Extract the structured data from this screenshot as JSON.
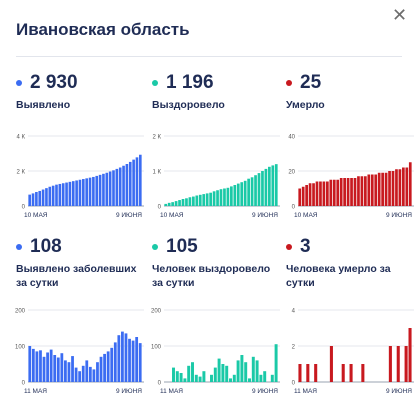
{
  "header": {
    "title": "Ивановская область",
    "close_glyph": "✕"
  },
  "panels": [
    {
      "id": "detected",
      "value": "2 930",
      "label": "Выявлено",
      "color": "#3b6cf2",
      "chart_data": {
        "type": "bar",
        "yticks": [
          "4 К",
          "2 К",
          "0"
        ],
        "ylim": [
          0,
          4000
        ],
        "xlabel_start": "10 МАЯ",
        "xlabel_end": "9 ИЮНЯ",
        "values": [
          650,
          720,
          800,
          860,
          940,
          1020,
          1100,
          1160,
          1220,
          1260,
          1300,
          1340,
          1380,
          1420,
          1460,
          1500,
          1540,
          1580,
          1620,
          1660,
          1720,
          1780,
          1840,
          1900,
          1970,
          2040,
          2120,
          2200,
          2300,
          2400,
          2520,
          2650,
          2780,
          2930
        ]
      }
    },
    {
      "id": "recovered",
      "value": "1 196",
      "label": "Выздоровело",
      "color": "#1ac9a7",
      "chart_data": {
        "type": "bar",
        "yticks": [
          "2 К",
          "1 К",
          "0"
        ],
        "ylim": [
          0,
          2000
        ],
        "xlabel_start": "10 МАЯ",
        "xlabel_end": "9 ИЮНЯ",
        "values": [
          60,
          90,
          110,
          140,
          170,
          200,
          220,
          250,
          270,
          300,
          320,
          340,
          360,
          380,
          420,
          450,
          480,
          500,
          520,
          560,
          600,
          640,
          680,
          720,
          780,
          820,
          880,
          940,
          1000,
          1060,
          1120,
          1160,
          1196
        ]
      }
    },
    {
      "id": "deaths",
      "value": "25",
      "label": "Умерло",
      "color": "#c8191f",
      "chart_data": {
        "type": "bar",
        "yticks": [
          "40",
          "20",
          "0"
        ],
        "ylim": [
          0,
          40
        ],
        "xlabel_start": "10 МАЯ",
        "xlabel_end": "9 ИЮНЯ",
        "values": [
          10,
          11,
          12,
          13,
          13,
          14,
          14,
          14,
          14,
          15,
          15,
          15,
          16,
          16,
          16,
          16,
          16,
          17,
          17,
          17,
          18,
          18,
          18,
          19,
          19,
          19,
          20,
          20,
          21,
          21,
          22,
          22,
          25
        ]
      }
    },
    {
      "id": "detected-daily",
      "value": "108",
      "label": "Выявлено заболевших за сутки",
      "color": "#3b6cf2",
      "chart_data": {
        "type": "bar",
        "yticks": [
          "200",
          "100",
          "0"
        ],
        "ylim": [
          0,
          200
        ],
        "xlabel_start": "11 МАЯ",
        "xlabel_end": "9 ИЮНЯ",
        "values": [
          100,
          92,
          85,
          88,
          70,
          82,
          90,
          75,
          68,
          80,
          60,
          55,
          72,
          40,
          30,
          45,
          60,
          42,
          35,
          55,
          70,
          78,
          85,
          95,
          110,
          130,
          140,
          135,
          120,
          115,
          125,
          108
        ]
      }
    },
    {
      "id": "recovered-daily",
      "value": "105",
      "label": "Человек выздоровело за сутки",
      "color": "#1ac9a7",
      "chart_data": {
        "type": "bar",
        "yticks": [
          "200",
          "100",
          "0"
        ],
        "ylim": [
          0,
          200
        ],
        "xlabel_start": "11 МАЯ",
        "xlabel_end": "9 ИЮНЯ",
        "values": [
          0,
          0,
          40,
          30,
          25,
          10,
          45,
          55,
          20,
          15,
          30,
          0,
          20,
          40,
          65,
          50,
          45,
          10,
          20,
          60,
          75,
          55,
          10,
          70,
          60,
          20,
          30,
          0,
          20,
          105
        ]
      }
    },
    {
      "id": "deaths-daily",
      "value": "3",
      "label": "Человека умерло за сутки",
      "color": "#c8191f",
      "chart_data": {
        "type": "bar",
        "yticks": [
          "4",
          "2",
          "0"
        ],
        "ylim": [
          0,
          4
        ],
        "xlabel_start": "11 МАЯ",
        "xlabel_end": "9 ИЮНЯ",
        "values": [
          1,
          0,
          1,
          0,
          1,
          0,
          0,
          0,
          2,
          0,
          0,
          1,
          0,
          1,
          0,
          0,
          1,
          0,
          0,
          0,
          0,
          0,
          0,
          2,
          0,
          2,
          0,
          2,
          3
        ]
      }
    }
  ]
}
